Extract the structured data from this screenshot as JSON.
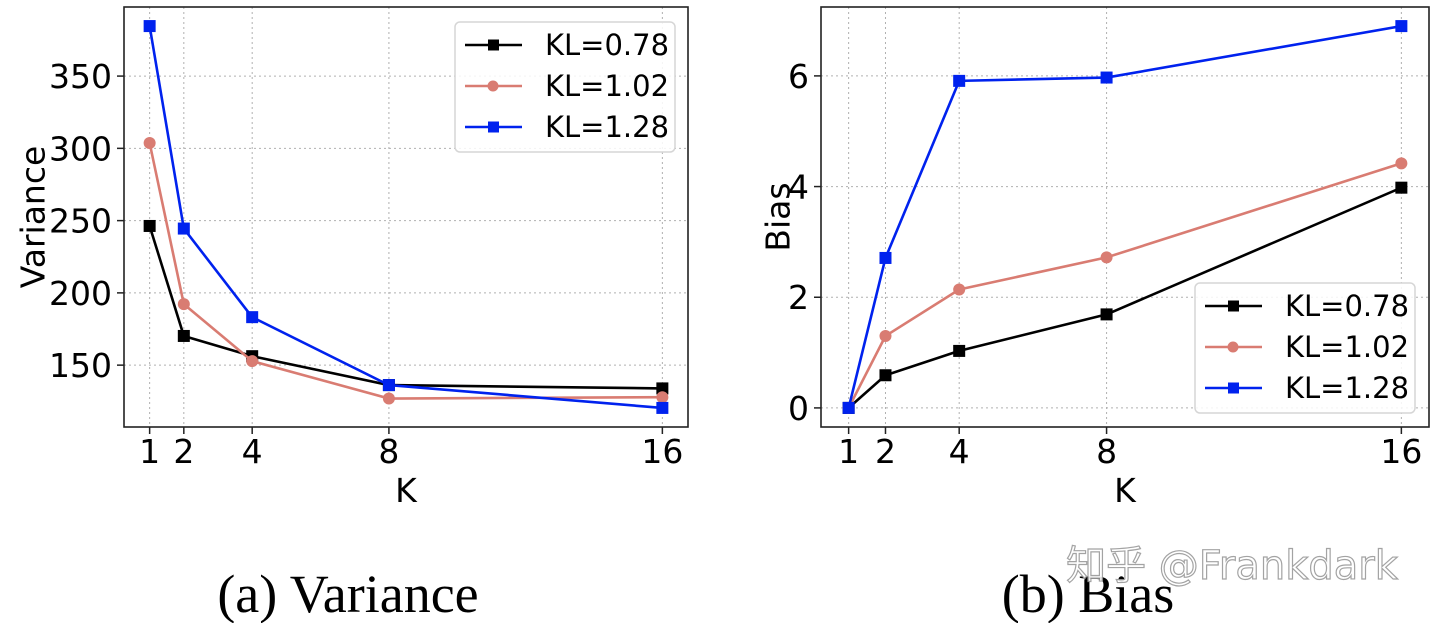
{
  "chart_data": [
    {
      "type": "line",
      "id": "variance",
      "title": "",
      "caption": "(a) Variance",
      "xlabel": "K",
      "ylabel": "Variance",
      "x": [
        1,
        2,
        4,
        8,
        16
      ],
      "xticks": [
        1,
        2,
        4,
        8,
        16
      ],
      "yticks": [
        150,
        200,
        250,
        300,
        350
      ],
      "xlim": [
        0.25,
        16.75
      ],
      "ylim": [
        107.2,
        397.8
      ],
      "grid": true,
      "legend_position": "top-right",
      "series": [
        {
          "name": "KL=0.78",
          "color": "#000000",
          "marker": "square",
          "values": [
            246.3,
            170.2,
            156.2,
            136.2,
            133.9
          ]
        },
        {
          "name": "KL=1.02",
          "color": "#d97c72",
          "marker": "circle",
          "values": [
            303.7,
            192.2,
            152.8,
            126.9,
            127.8
          ]
        },
        {
          "name": "KL=1.28",
          "color": "#0022ee",
          "marker": "square",
          "values": [
            384.6,
            244.5,
            183.2,
            136.2,
            120.4
          ]
        }
      ]
    },
    {
      "type": "line",
      "id": "bias",
      "title": "",
      "caption": "(b) Bias",
      "xlabel": "K",
      "ylabel": "Bias",
      "x": [
        1,
        2,
        4,
        8,
        16
      ],
      "xticks": [
        1,
        2,
        4,
        8,
        16
      ],
      "yticks": [
        0,
        2,
        4,
        6
      ],
      "xlim": [
        0.25,
        16.75
      ],
      "ylim": [
        -0.345,
        7.245
      ],
      "grid": true,
      "legend_position": "bottom-right",
      "series": [
        {
          "name": "KL=0.78",
          "color": "#000000",
          "marker": "square",
          "values": [
            0.0,
            0.59,
            1.03,
            1.69,
            3.98
          ]
        },
        {
          "name": "KL=1.02",
          "color": "#d97c72",
          "marker": "circle",
          "values": [
            0.0,
            1.3,
            2.14,
            2.72,
            4.42
          ]
        },
        {
          "name": "KL=1.28",
          "color": "#0022ee",
          "marker": "square",
          "values": [
            0.0,
            2.71,
            5.91,
            5.97,
            6.9
          ]
        }
      ]
    }
  ],
  "watermark": "知乎 @Frankdark"
}
